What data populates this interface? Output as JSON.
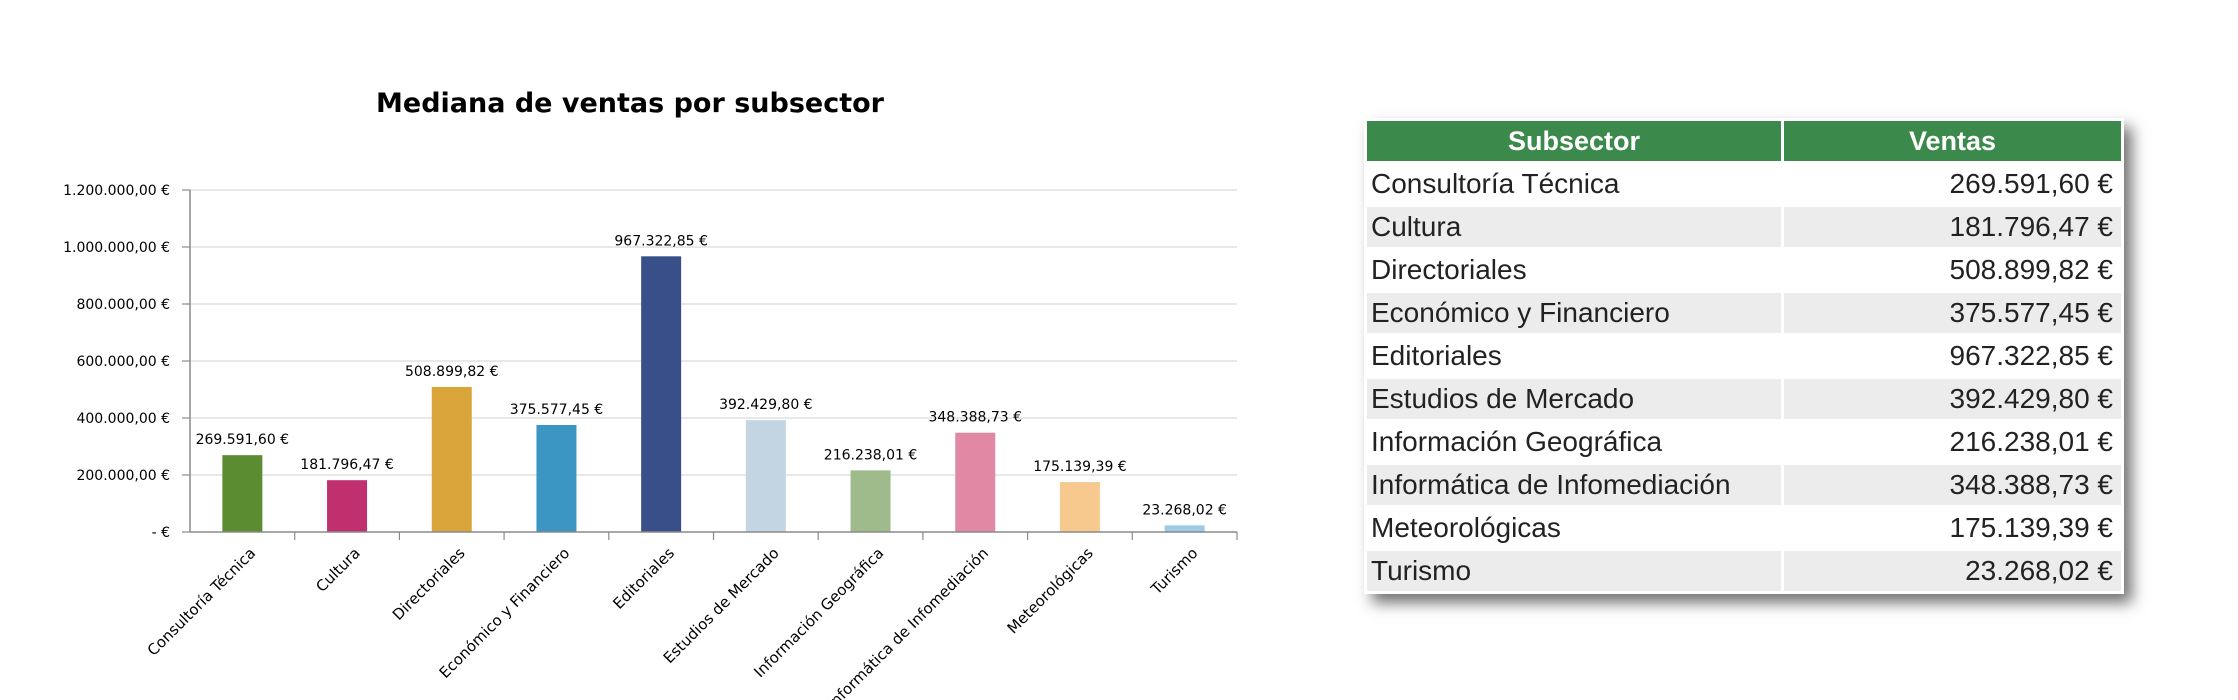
{
  "chart_data": {
    "type": "bar",
    "title": "Mediana de ventas por subsector",
    "xlabel": "",
    "ylabel": "",
    "categories": [
      "Consultoría Técnica",
      "Cultura",
      "Directoriales",
      "Económico y Financiero",
      "Editoriales",
      "Estudios de Mercado",
      "Información Geográfica",
      "Informática de Infomediación",
      "Meteorológicas",
      "Turismo"
    ],
    "values": [
      269591.6,
      181796.47,
      508899.82,
      375577.45,
      967322.85,
      392429.8,
      216238.01,
      348388.73,
      175139.39,
      23268.02
    ],
    "data_labels": [
      "269.591,60 €",
      "181.796,47 €",
      "508.899,82 €",
      "375.577,45 €",
      "967.322,85 €",
      "392.429,80 €",
      "216.238,01 €",
      "348.388,73 €",
      "175.139,39 €",
      "23.268,02 €"
    ],
    "colors": [
      "#5b8c32",
      "#c1306e",
      "#d9a53a",
      "#3b96c3",
      "#394f8a",
      "#c3d5e2",
      "#9fbb8b",
      "#e088a4",
      "#f7c98e",
      "#9dcbe5"
    ],
    "ylim": [
      0,
      1200000
    ],
    "yticks": [
      0,
      200000,
      400000,
      600000,
      800000,
      1000000,
      1200000
    ],
    "ytick_labels": [
      "-  €",
      "200.000,00 €",
      "400.000,00 €",
      "600.000,00 €",
      "800.000,00 €",
      "1.000.000,00 €",
      "1.200.000,00 €"
    ],
    "grid": true,
    "legend": "none"
  },
  "table": {
    "headers": [
      "Subsector",
      "Ventas"
    ],
    "header_color": "#3b8a4c",
    "rows": [
      {
        "subsector": "Consultoría Técnica",
        "ventas": "269.591,60 €"
      },
      {
        "subsector": "Cultura",
        "ventas": "181.796,47 €"
      },
      {
        "subsector": "Directoriales",
        "ventas": "508.899,82 €"
      },
      {
        "subsector": "Económico y Financiero",
        "ventas": "375.577,45 €"
      },
      {
        "subsector": "Editoriales",
        "ventas": "967.322,85 €"
      },
      {
        "subsector": "Estudios de Mercado",
        "ventas": "392.429,80 €"
      },
      {
        "subsector": "Información Geográfica",
        "ventas": "216.238,01 €"
      },
      {
        "subsector": "Informática de Infomediación",
        "ventas": "348.388,73 €"
      },
      {
        "subsector": "Meteorológicas",
        "ventas": "175.139,39 €"
      },
      {
        "subsector": "Turismo",
        "ventas": "23.268,02 €"
      }
    ]
  }
}
